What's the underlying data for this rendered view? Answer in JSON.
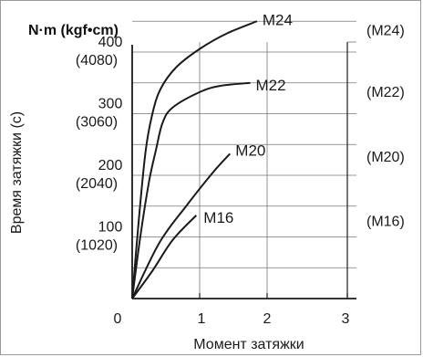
{
  "chart_data": {
    "type": "line",
    "title": "",
    "unit_label": "N·m (kgf•cm)",
    "xlabel": "Момент затяжки",
    "ylabel": "Время затяжки (c)",
    "xlim": [
      0,
      3.5
    ],
    "ylim": [
      0,
      450
    ],
    "x_ticks": [
      "0",
      "1",
      "2",
      "3"
    ],
    "y_ticks": [
      {
        "value": 100,
        "line1": "100",
        "line2": "(1020)"
      },
      {
        "value": 200,
        "line1": "200",
        "line2": "(2040)"
      },
      {
        "value": 300,
        "line1": "300",
        "line2": "(3060)"
      },
      {
        "value": 400,
        "line1": "400",
        "line2": "(4080)"
      }
    ],
    "right_labels": [
      {
        "value": 435,
        "text": "(M24)"
      },
      {
        "value": 335,
        "text": "(M22)"
      },
      {
        "value": 230,
        "text": "(M20)"
      },
      {
        "value": 125,
        "text": "(M16)"
      }
    ],
    "series": [
      {
        "name": "M24",
        "points": [
          [
            0,
            0
          ],
          [
            0.1,
            130
          ],
          [
            0.2,
            240
          ],
          [
            0.3,
            300
          ],
          [
            0.42,
            340
          ],
          [
            0.65,
            375
          ],
          [
            1.0,
            405
          ],
          [
            1.4,
            430
          ],
          [
            1.85,
            450
          ]
        ]
      },
      {
        "name": "M22",
        "points": [
          [
            0,
            0
          ],
          [
            0.12,
            100
          ],
          [
            0.25,
            190
          ],
          [
            0.35,
            240
          ],
          [
            0.45,
            285
          ],
          [
            0.6,
            310
          ],
          [
            1.0,
            335
          ],
          [
            1.3,
            345
          ],
          [
            1.75,
            350
          ]
        ]
      },
      {
        "name": "M20",
        "points": [
          [
            0,
            0
          ],
          [
            0.4,
            90
          ],
          [
            0.8,
            150
          ],
          [
            1.2,
            205
          ],
          [
            1.45,
            235
          ]
        ]
      },
      {
        "name": "M16",
        "points": [
          [
            0,
            0
          ],
          [
            0.3,
            45
          ],
          [
            0.6,
            95
          ],
          [
            0.95,
            135
          ]
        ]
      }
    ],
    "colors": {
      "line": "#1a1a1a",
      "grid": "#777777",
      "frame": "#9a9a9a"
    }
  }
}
